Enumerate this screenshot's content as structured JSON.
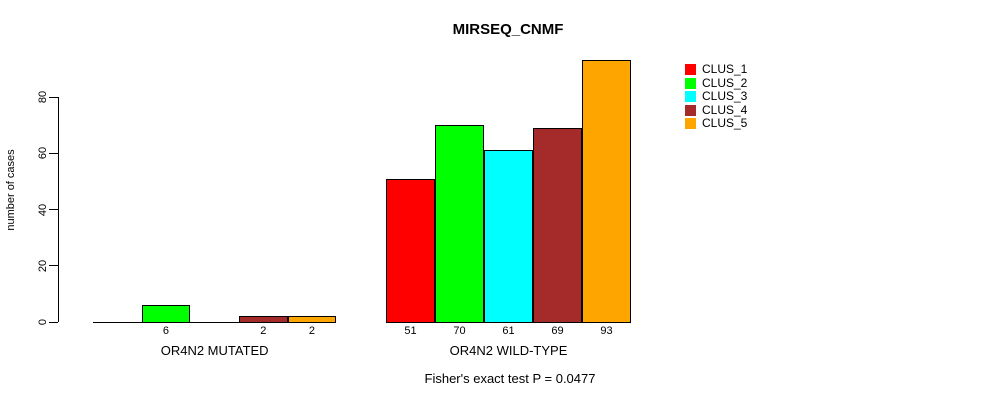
{
  "chart_data": {
    "type": "bar",
    "title": "MIRSEQ_CNMF",
    "subtitle": "Fisher's exact test P = 0.0477",
    "ylabel": "number of cases",
    "xlabel": "",
    "yticks": [
      0,
      20,
      40,
      60,
      80
    ],
    "ylim": [
      0,
      93
    ],
    "grid": false,
    "legend_position": "top-right",
    "categories": [
      "OR4N2 MUTATED",
      "OR4N2 WILD-TYPE"
    ],
    "series": [
      {
        "name": "CLUS_1",
        "color": "#FF0000",
        "values": [
          0,
          51
        ]
      },
      {
        "name": "CLUS_2",
        "color": "#00FF00",
        "values": [
          6,
          70
        ]
      },
      {
        "name": "CLUS_3",
        "color": "#00FFFF",
        "values": [
          0,
          61
        ]
      },
      {
        "name": "CLUS_4",
        "color": "#A52A2A",
        "values": [
          2,
          69
        ]
      },
      {
        "name": "CLUS_5",
        "color": "#FFA500",
        "values": [
          2,
          93
        ]
      }
    ],
    "bar_value_labels_shown": [
      "6",
      "2",
      "2",
      "51",
      "70",
      "61",
      "69",
      "93"
    ],
    "zero_bars_unlabeled": true
  },
  "colors": {
    "background": "#FFFFFF",
    "bar_border": "#000000",
    "axis": "#000000",
    "text": "#000000"
  }
}
